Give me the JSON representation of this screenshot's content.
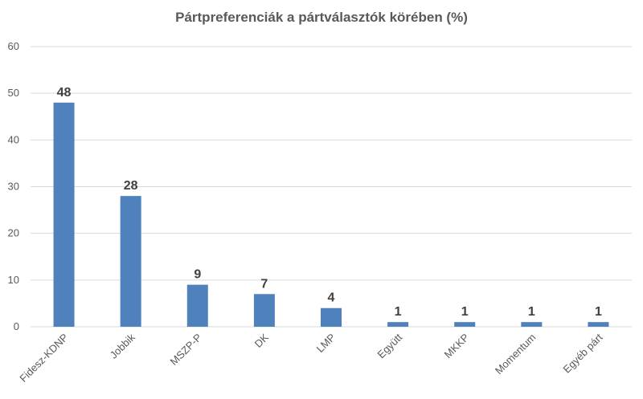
{
  "chart_data": {
    "type": "bar",
    "title": "Pártpreferenciák a pártválasztók körében (%)",
    "xlabel": "",
    "ylabel": "",
    "categories": [
      "Fidesz-KDNP",
      "Jobbik",
      "MSZP-P",
      "DK",
      "LMP",
      "Együtt",
      "MKKP",
      "Momentum",
      "Egyéb párt"
    ],
    "values": [
      48,
      28,
      9,
      7,
      4,
      1,
      1,
      1,
      1
    ],
    "ylim": [
      0,
      60
    ],
    "yticks": [
      0,
      10,
      20,
      30,
      40,
      50,
      60
    ],
    "grid": true,
    "legend": "none",
    "bar_color": "#4f81bd"
  }
}
